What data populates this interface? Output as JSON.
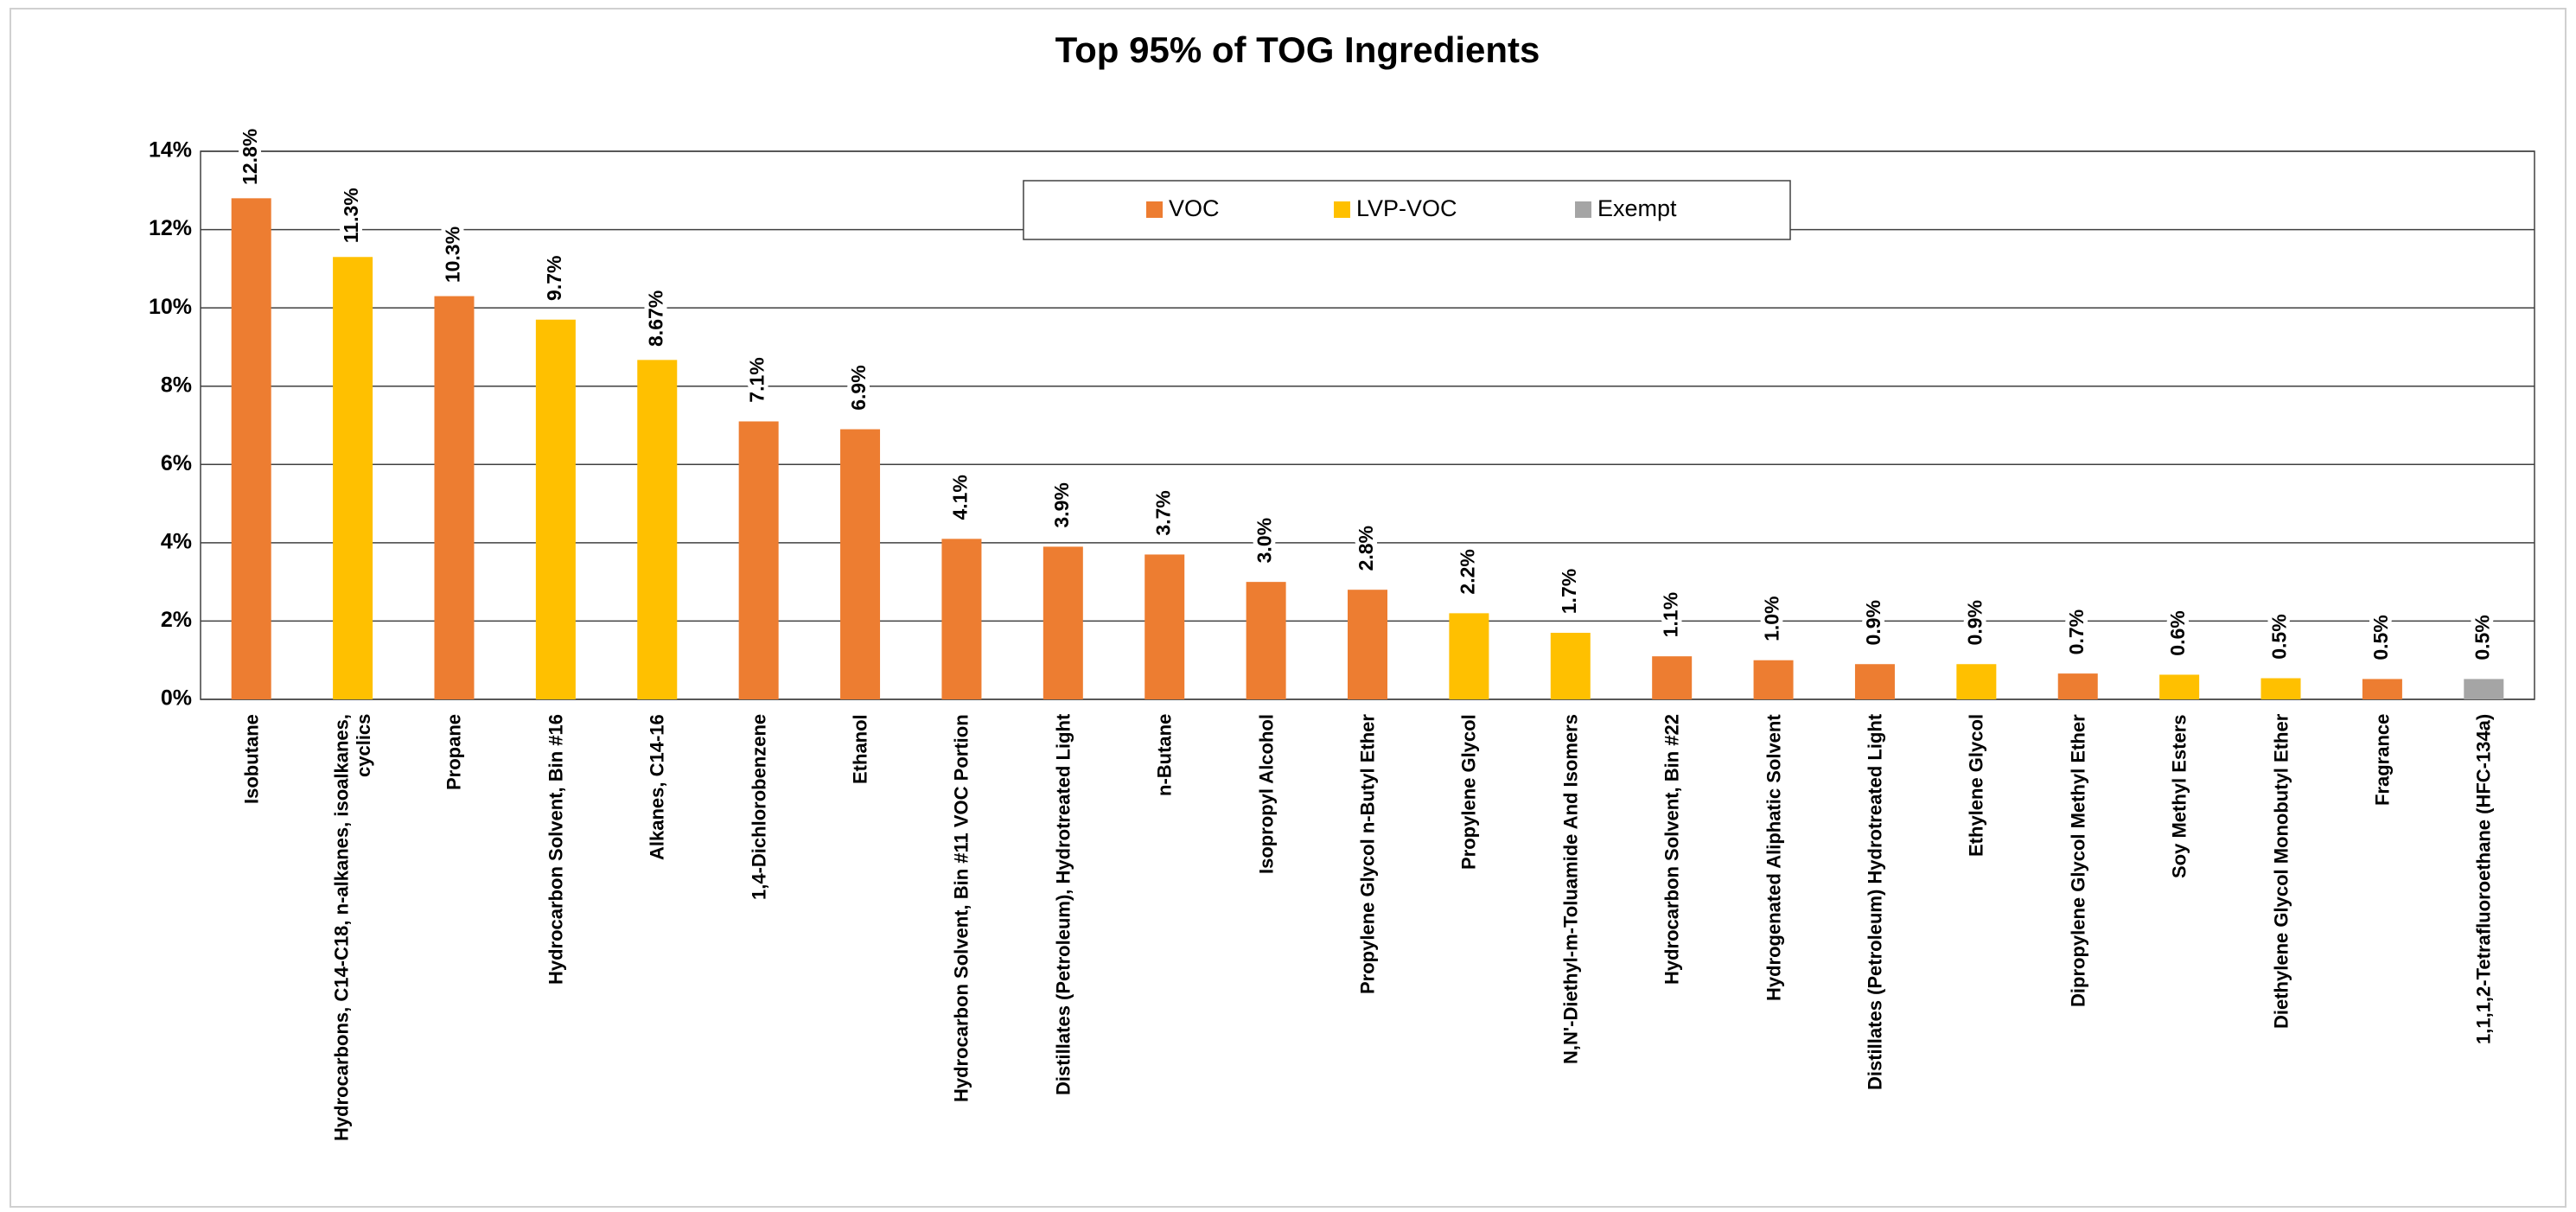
{
  "chart_data": {
    "type": "bar",
    "title": "Top 95% of TOG Ingredients",
    "categories": [
      "Isobutane",
      "Hydrocarbons, C14-C18, n-alkanes, isoalkanes, cyclics",
      "Propane",
      "Hydrocarbon Solvent, Bin #16",
      "Alkanes, C14-16",
      "1,4-Dichlorobenzene",
      "Ethanol",
      "Hydrocarbon Solvent, Bin #11 VOC Portion",
      "Distillates (Petroleum), Hydrotreated Light",
      "n-Butane",
      "Isopropyl Alcohol",
      "Propylene Glycol n-Butyl Ether",
      "Propylene Glycol",
      "N,N'-Diethyl-m-Toluamide And Isomers",
      "Hydrocarbon Solvent, Bin #22",
      "Hydrogenated Aliphatic Solvent",
      "Distillates (Petroleum) Hydrotreated Light",
      "Ethylene Glycol",
      "Dipropylene Glycol Methyl Ether",
      "Soy Methyl Esters",
      "Diethylene Glycol Monobutyl Ether",
      "Fragrance",
      "1,1,1,2-Tetrafluoroethane (HFC-134a)"
    ],
    "series": [
      {
        "name": "VOC",
        "color": "#ed7d31",
        "values": [
          12.8,
          null,
          10.3,
          null,
          null,
          7.1,
          6.9,
          4.1,
          3.9,
          3.7,
          3.0,
          2.8,
          null,
          null,
          1.1,
          1.0,
          0.9,
          null,
          0.66,
          null,
          null,
          0.52,
          null
        ],
        "value_labels": [
          "12.8%",
          null,
          "10.3%",
          null,
          null,
          "7.1%",
          "6.9%",
          "4.1%",
          "3.9%",
          "3.7%",
          "3.0%",
          "2.8%",
          null,
          null,
          "1.1%",
          "1.0%",
          "0.9%",
          null,
          "0.7%",
          null,
          null,
          "0.5%",
          null
        ]
      },
      {
        "name": "LVP-VOC",
        "color": "#ffc000",
        "values": [
          null,
          11.3,
          null,
          9.7,
          8.67,
          null,
          null,
          null,
          null,
          null,
          null,
          null,
          2.2,
          1.7,
          null,
          null,
          null,
          0.9,
          null,
          0.63,
          0.54,
          null,
          null
        ],
        "value_labels": [
          null,
          "11.3%",
          null,
          "9.7%",
          "8.67%",
          null,
          null,
          null,
          null,
          null,
          null,
          null,
          "2.2%",
          "1.7%",
          null,
          null,
          null,
          "0.9%",
          null,
          "0.6%",
          "0.5%",
          null,
          null
        ]
      },
      {
        "name": "Exempt",
        "color": "#a5a5a5",
        "values": [
          null,
          null,
          null,
          null,
          null,
          null,
          null,
          null,
          null,
          null,
          null,
          null,
          null,
          null,
          null,
          null,
          null,
          null,
          null,
          null,
          null,
          null,
          0.52
        ],
        "value_labels": [
          null,
          null,
          null,
          null,
          null,
          null,
          null,
          null,
          null,
          null,
          null,
          null,
          null,
          null,
          null,
          null,
          null,
          null,
          null,
          null,
          null,
          null,
          "0.5%"
        ]
      }
    ],
    "ylim": [
      0,
      14
    ],
    "yticks": [
      {
        "value": 0,
        "label": "0%"
      },
      {
        "value": 2,
        "label": "2%"
      },
      {
        "value": 4,
        "label": "4%"
      },
      {
        "value": 6,
        "label": "6%"
      },
      {
        "value": 8,
        "label": "8%"
      },
      {
        "value": 10,
        "label": "10%"
      },
      {
        "value": 12,
        "label": "12%"
      },
      {
        "value": 14,
        "label": "14%"
      }
    ],
    "grid": true,
    "legend": "top"
  }
}
